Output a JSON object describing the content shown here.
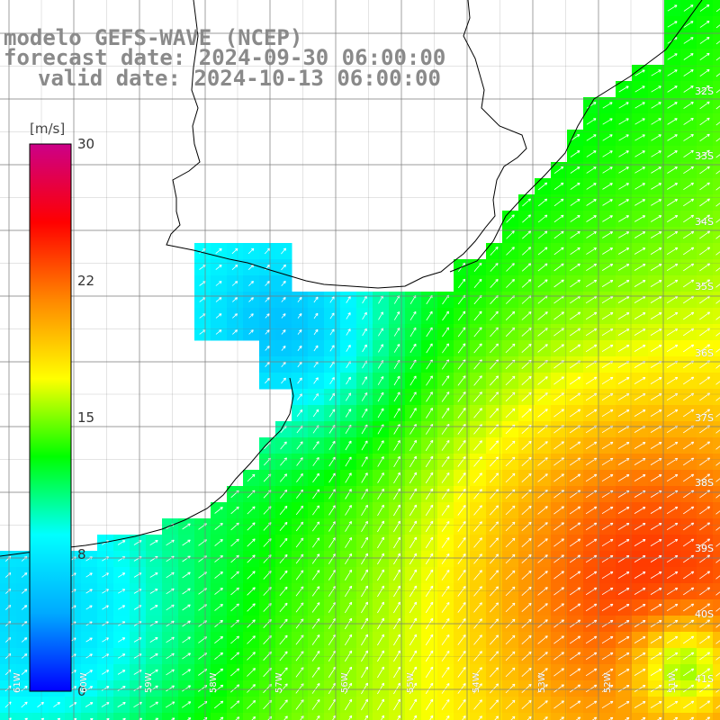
{
  "title": {
    "line1": "modelo GEFS-WAVE (NCEP)",
    "line2": "forecast date: 2024-09-30 06:00:00",
    "line3": "valid date: 2024-10-13 06:00:00"
  },
  "colorbar": {
    "unit": "[m/s]",
    "ticks": [
      "30",
      "22",
      "15",
      "8",
      "0"
    ],
    "range": [
      0,
      30
    ],
    "colors": [
      "#0000ff",
      "#00aaff",
      "#00ffff",
      "#00ff00",
      "#ffff00",
      "#ff8800",
      "#ff0000",
      "#cc0088"
    ]
  },
  "lat_labels": [
    "32S",
    "33S",
    "34S",
    "35S",
    "36S",
    "37S",
    "38S",
    "39S",
    "40S",
    "41S"
  ],
  "lon_labels": [
    "61W",
    "60W",
    "59W",
    "58W",
    "57W",
    "56W",
    "55W",
    "54W",
    "53W",
    "52W",
    "51W"
  ],
  "colors": {
    "land": "#ffffff",
    "grid": "#7a7a7a",
    "coast": "#000000",
    "vector": "#ffffff"
  }
}
